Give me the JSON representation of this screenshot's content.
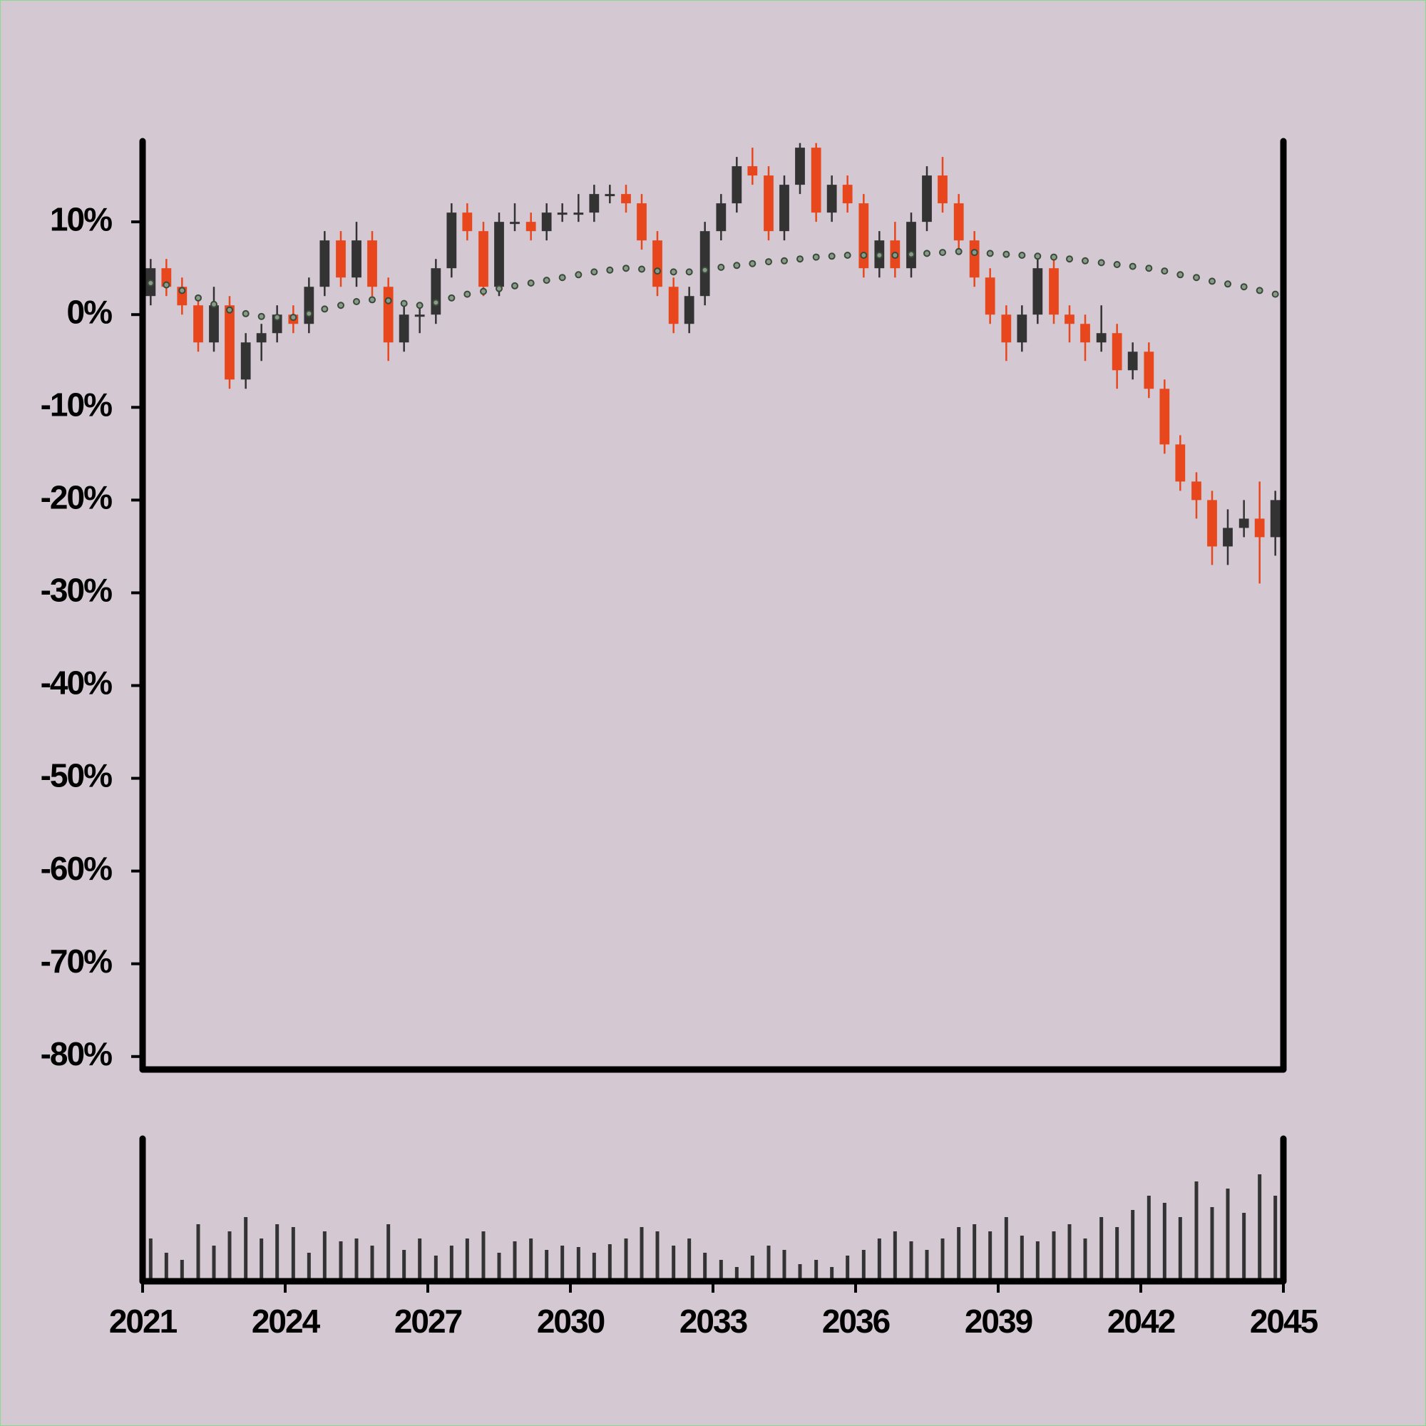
{
  "chart_data": {
    "type": "candlestick",
    "x": [
      2021.17,
      2021.5,
      2021.83,
      2022.17,
      2022.5,
      2022.83,
      2023.17,
      2023.5,
      2023.83,
      2024.17,
      2024.5,
      2024.83,
      2025.17,
      2025.5,
      2025.83,
      2026.17,
      2026.5,
      2026.83,
      2027.17,
      2027.5,
      2027.83,
      2028.17,
      2028.5,
      2028.83,
      2029.17,
      2029.5,
      2029.83,
      2030.17,
      2030.5,
      2030.83,
      2031.17,
      2031.5,
      2031.83,
      2032.17,
      2032.5,
      2032.83,
      2033.17,
      2033.5,
      2033.83,
      2034.17,
      2034.5,
      2034.83,
      2035.17,
      2035.5,
      2035.83,
      2036.17,
      2036.5,
      2036.83,
      2037.17,
      2037.5,
      2037.83,
      2038.17,
      2038.5,
      2038.83,
      2039.17,
      2039.5,
      2039.83,
      2040.17,
      2040.5,
      2040.83,
      2041.17,
      2041.5,
      2041.83,
      2042.17,
      2042.5,
      2042.83,
      2043.17,
      2043.5,
      2043.83,
      2044.17,
      2044.5,
      2044.83
    ],
    "open": [
      2,
      5,
      3,
      1,
      -3,
      1,
      -7,
      -3,
      -2,
      0,
      -1,
      3,
      8,
      4,
      8,
      3,
      -3,
      0,
      0,
      5,
      11,
      9,
      3,
      10,
      10,
      9,
      11,
      11,
      11,
      13,
      13,
      12,
      8,
      3,
      -1,
      2,
      9,
      12,
      16,
      15,
      9,
      14,
      18,
      11,
      14,
      12,
      5,
      8,
      5,
      10,
      15,
      12,
      8,
      4,
      0,
      -3,
      0,
      5,
      0,
      -1,
      -3,
      -2,
      -6,
      -4,
      -8,
      -14,
      -18,
      -20,
      -25,
      -23,
      -22,
      -24
    ],
    "high": [
      6,
      6,
      4,
      2,
      3,
      2,
      -2,
      -1,
      1,
      1,
      4,
      9,
      9,
      10,
      9,
      4,
      1,
      1,
      6,
      12,
      12,
      10,
      11,
      12,
      11,
      12,
      12,
      13,
      14,
      14,
      14,
      13,
      9,
      4,
      3,
      10,
      13,
      17,
      18,
      16,
      15,
      18.5,
      18.5,
      15,
      15,
      13,
      9,
      10,
      11,
      16,
      17,
      13,
      9,
      5,
      1,
      1,
      6,
      6,
      1,
      0,
      1,
      -1,
      -3,
      -3,
      -7,
      -13,
      -17,
      -19,
      -21,
      -20,
      -18,
      -19
    ],
    "low": [
      1,
      2,
      0,
      -4,
      -4,
      -8,
      -8,
      -5,
      -3,
      -2,
      -2,
      2,
      3,
      3,
      2,
      -5,
      -4,
      -2,
      -1,
      4,
      8,
      2,
      2,
      9,
      8,
      8,
      10,
      10,
      10,
      12,
      11,
      7,
      2,
      -2,
      -2,
      1,
      8,
      11,
      14,
      8,
      8,
      13,
      10,
      10,
      11,
      4,
      4,
      4,
      4,
      9,
      11,
      7,
      3,
      -1,
      -5,
      -4,
      -1,
      -1,
      -3,
      -5,
      -4,
      -8,
      -7,
      -9,
      -15,
      -19,
      -22,
      -27,
      -27,
      -24,
      -29,
      -26
    ],
    "close": [
      5,
      3,
      1,
      -3,
      1,
      -7,
      -3,
      -2,
      0,
      -1,
      3,
      8,
      4,
      8,
      3,
      -3,
      0,
      0,
      5,
      11,
      9,
      3,
      10,
      10,
      9,
      11,
      11,
      11,
      13,
      13,
      12,
      8,
      3,
      -1,
      2,
      9,
      12,
      16,
      15,
      9,
      14,
      18,
      11,
      14,
      12,
      5,
      8,
      5,
      10,
      15,
      12,
      8,
      4,
      0,
      -3,
      0,
      5,
      0,
      -1,
      -3,
      -2,
      -6,
      -4,
      -8,
      -14,
      -18,
      -20,
      -25,
      -23,
      -22,
      -24,
      -20
    ],
    "moving_average": [
      3.4,
      3.2,
      2.6,
      1.8,
      1.1,
      0.5,
      0.1,
      -0.2,
      -0.3,
      -0.3,
      0.1,
      0.6,
      1.0,
      1.4,
      1.6,
      1.5,
      1.2,
      1.0,
      1.3,
      1.8,
      2.2,
      2.5,
      2.8,
      3.1,
      3.4,
      3.7,
      4.0,
      4.3,
      4.6,
      4.8,
      5.0,
      4.9,
      4.7,
      4.6,
      4.6,
      4.8,
      5.1,
      5.3,
      5.5,
      5.7,
      5.8,
      6.0,
      6.2,
      6.3,
      6.4,
      6.4,
      6.4,
      6.4,
      6.5,
      6.6,
      6.7,
      6.8,
      6.7,
      6.6,
      6.5,
      6.4,
      6.3,
      6.2,
      6.0,
      5.8,
      5.6,
      5.4,
      5.2,
      5.0,
      4.7,
      4.3,
      4.0,
      3.6,
      3.3,
      3.0,
      2.6,
      2.2
    ],
    "volume": [
      30,
      20,
      15,
      40,
      25,
      35,
      45,
      30,
      40,
      38,
      20,
      35,
      28,
      30,
      25,
      40,
      22,
      30,
      18,
      25,
      30,
      35,
      20,
      28,
      30,
      22,
      25,
      24,
      20,
      26,
      30,
      38,
      35,
      25,
      30,
      20,
      15,
      10,
      18,
      25,
      22,
      12,
      15,
      10,
      18,
      22,
      30,
      35,
      28,
      22,
      30,
      38,
      40,
      35,
      45,
      32,
      28,
      35,
      40,
      30,
      45,
      38,
      50,
      60,
      55,
      45,
      70,
      52,
      65,
      48,
      75,
      60
    ],
    "up_color": "#333333",
    "down_color": "#e8461c",
    "ma_color": "#3a4a3a",
    "volume_color": "#333333",
    "xlim": [
      2021,
      2045
    ],
    "xticks": [
      2021,
      2024,
      2027,
      2030,
      2033,
      2036,
      2039,
      2042,
      2045
    ],
    "ylim": [
      -81.4,
      18.7
    ],
    "yticks": [
      {
        "value": 10,
        "label": "10%"
      },
      {
        "value": 0,
        "label": "0%"
      },
      {
        "value": -10,
        "label": "-10%"
      },
      {
        "value": -20,
        "label": "-20%"
      },
      {
        "value": -30,
        "label": "-30%"
      },
      {
        "value": -40,
        "label": "-40%"
      },
      {
        "value": -50,
        "label": "-50%"
      },
      {
        "value": -60,
        "label": "-60%"
      },
      {
        "value": -70,
        "label": "-70%"
      },
      {
        "value": -80,
        "label": "-80%"
      }
    ],
    "volume_ylim": [
      0,
      100
    ]
  }
}
